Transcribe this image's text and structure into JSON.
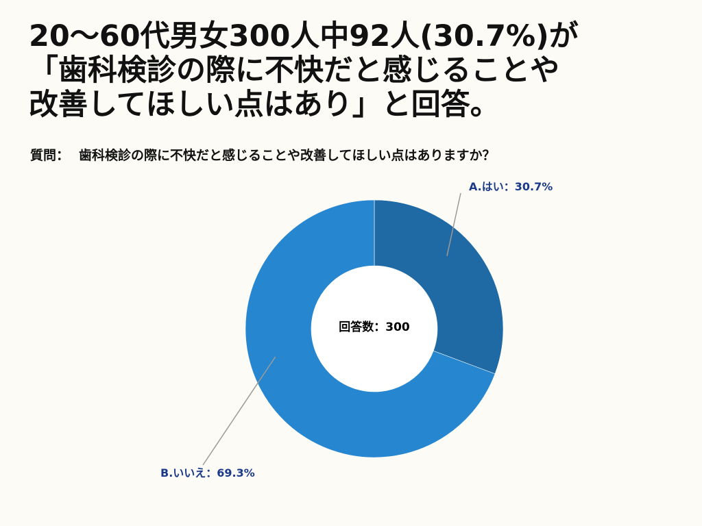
{
  "title_lines": [
    "20〜60代男女300人中92人(30.7%)が",
    "「歯科検診の際に不快だと感じることや",
    "改善してほしい点はあり」と回答。"
  ],
  "question": {
    "prefix": "質問：",
    "text": "歯科検診の際に不快だと感じることや改善してほしい点はありますか？"
  },
  "chart_data": {
    "type": "pie",
    "donut": true,
    "center_label": "回答数：300",
    "total": 300,
    "slices": [
      {
        "label": "A.はい：30.7%",
        "value": 30.7,
        "color": "#1f6aa5"
      },
      {
        "label": "B.いいえ：69.3%",
        "value": 69.3,
        "color": "#2686cf"
      }
    ],
    "label_color": "#1b3a8c",
    "leader_color": "#9a9a9a"
  }
}
